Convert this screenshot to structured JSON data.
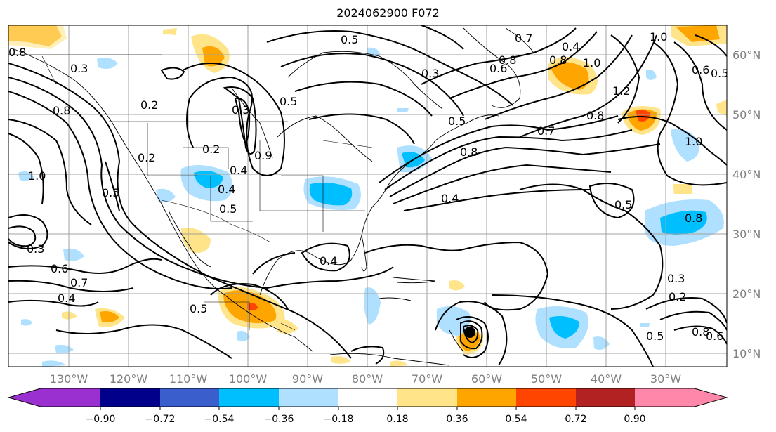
{
  "title": "2024062900 F072",
  "lon_labels": [
    "130°W",
    "120°W",
    "110°W",
    "100°W",
    "90°W",
    "80°W",
    "70°W",
    "60°W",
    "50°W",
    "40°W",
    "30°W"
  ],
  "lat_labels": [
    "60°N",
    "50°N",
    "40°N",
    "30°N",
    "20°N",
    "10°N"
  ],
  "colorbar": {
    "ticks": [
      "−0.90",
      "−0.72",
      "−0.54",
      "−0.36",
      "−0.18",
      "0.18",
      "0.36",
      "0.54",
      "0.72",
      "0.90"
    ],
    "colors": [
      "#9b30d0",
      "#00008b",
      "#3a5fcd",
      "#00bfff",
      "#b0e0ff",
      "#ffffff",
      "#ffe48a",
      "#ffa500",
      "#ff4500",
      "#b22222",
      "#ff88aa"
    ]
  },
  "contour_labels": [
    "0.3",
    "0.2",
    "0.8",
    "1.0",
    "0.2",
    "0.5",
    "0.3",
    "0.4",
    "0.2",
    "0.4",
    "0.5",
    "0.7",
    "0.4",
    "0.5",
    "0.4",
    "0.5",
    "0.3",
    "0.6",
    "0.5",
    "0.8",
    "0.7",
    "0.8",
    "0.7",
    "0.4",
    "0.8",
    "0.6",
    "1.0",
    "1.2",
    "0.8",
    "1.0",
    "0.5",
    "0.8",
    "0.3",
    "0.4",
    "0.8",
    "0.2",
    "1.0",
    "0.6",
    "0.5",
    "0.5",
    "0.6",
    "0.3",
    "0.5",
    "0.9",
    "0.8"
  ]
}
